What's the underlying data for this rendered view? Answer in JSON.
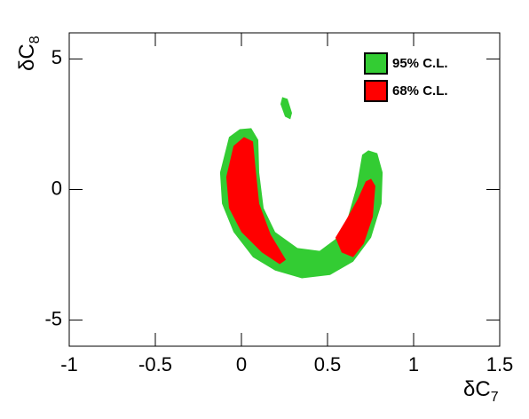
{
  "chart_data": {
    "type": "contour",
    "xlabel": "δC",
    "xlabel_sub": "7",
    "ylabel": "δC",
    "ylabel_sub": "8",
    "xlim": [
      -1,
      1.5
    ],
    "xticks": [
      -1,
      -0.5,
      0,
      0.5,
      1,
      1.5
    ],
    "ylim": [
      -6,
      6
    ],
    "yticks": [
      -5,
      0,
      5
    ],
    "legend": "upper right",
    "series": [
      {
        "name": "95% C.L.",
        "color": "#33cc33",
        "regions": [
          {
            "x": [
              -0.072,
              -0.01,
              0.057,
              0.098,
              0.103,
              0.129,
              0.196,
              0.325,
              0.454,
              0.546,
              0.619,
              0.67,
              0.701,
              0.737,
              0.789,
              0.82,
              0.814,
              0.753,
              0.649,
              0.515,
              0.351,
              0.196,
              0.067,
              -0.046,
              -0.113,
              -0.124
            ],
            "y": [
              2.01,
              2.31,
              2.35,
              1.9,
              0.65,
              -0.71,
              -1.63,
              -2.24,
              -2.35,
              -1.9,
              -1.05,
              0.14,
              1.33,
              1.5,
              1.39,
              0.65,
              -0.54,
              -1.84,
              -2.76,
              -3.27,
              -3.4,
              -3.1,
              -2.59,
              -1.63,
              -0.54,
              0.65
            ]
          },
          {
            "x": [
              0.237,
              0.268,
              0.294,
              0.284,
              0.253,
              0.227
            ],
            "y": [
              3.54,
              3.47,
              2.93,
              2.69,
              2.79,
              3.27
            ]
          }
        ]
      },
      {
        "name": "68% C.L.",
        "color": "#ff0000",
        "regions": [
          {
            "x": [
              -0.088,
              -0.046,
              0.015,
              0.067,
              0.082,
              0.103,
              0.17,
              0.258,
              0.222,
              0.119,
              0,
              -0.072
            ],
            "y": [
              0.48,
              1.67,
              2.01,
              1.84,
              0.82,
              -0.54,
              -1.73,
              -2.69,
              -2.86,
              -2.41,
              -1.63,
              -0.71
            ]
          },
          {
            "x": [
              0.546,
              0.608,
              0.675,
              0.722,
              0.753,
              0.778,
              0.763,
              0.711,
              0.649,
              0.582
            ],
            "y": [
              -1.84,
              -1.16,
              -0.37,
              0.31,
              0.41,
              0.14,
              -1.05,
              -2.07,
              -2.59,
              -2.41
            ]
          }
        ]
      }
    ]
  }
}
